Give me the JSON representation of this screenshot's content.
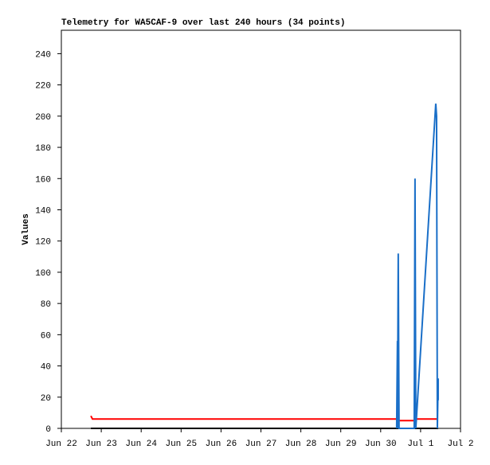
{
  "chart_data": {
    "type": "line",
    "title": "Telemetry for WA5CAF-9 over last 240 hours (34 points)",
    "y_label": "Values",
    "xlim": [
      0,
      10
    ],
    "xticks": [
      {
        "value": 0,
        "label": "Jun 22"
      },
      {
        "value": 1,
        "label": "Jun 23"
      },
      {
        "value": 2,
        "label": "Jun 24"
      },
      {
        "value": 3,
        "label": "Jun 25"
      },
      {
        "value": 4,
        "label": "Jun 26"
      },
      {
        "value": 5,
        "label": "Jun 27"
      },
      {
        "value": 6,
        "label": "Jun 28"
      },
      {
        "value": 7,
        "label": "Jun 29"
      },
      {
        "value": 8,
        "label": "Jun 30"
      },
      {
        "value": 9,
        "label": "Jul 1"
      },
      {
        "value": 10,
        "label": "Jul 2"
      }
    ],
    "ylim": [
      0,
      255
    ],
    "yticks": [
      0,
      20,
      40,
      60,
      80,
      100,
      120,
      140,
      160,
      180,
      200,
      220,
      240
    ],
    "grid": false,
    "series": [
      {
        "color": "#000000",
        "x": [
          0.74,
          9.44
        ],
        "values": [
          0,
          0
        ]
      },
      {
        "color": "#ff0000",
        "x": [
          0.74,
          0.76,
          0.78,
          8.42,
          8.44,
          8.86,
          8.88,
          9.44
        ],
        "values": [
          8,
          7,
          6,
          6,
          5,
          5,
          6,
          6
        ]
      },
      {
        "color": "#1a6fc8",
        "x": [
          8.4,
          8.42,
          8.42,
          8.44,
          8.46,
          8.84,
          8.86,
          8.88,
          9.38,
          9.4,
          9.42,
          9.44,
          9.44
        ],
        "values": [
          0,
          56,
          0,
          112,
          0,
          0,
          160,
          0,
          208,
          200,
          0,
          32,
          18
        ]
      }
    ]
  }
}
